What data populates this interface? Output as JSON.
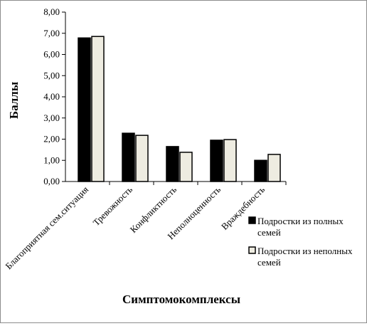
{
  "chart_data": {
    "type": "bar",
    "title": "",
    "xlabel": "Симптомокомплексы",
    "ylabel": "Баллы",
    "ylim": [
      0,
      8
    ],
    "y_ticks": [
      "0,00",
      "1,00",
      "2,00",
      "3,00",
      "4,00",
      "5,00",
      "6,00",
      "7,00",
      "8,00"
    ],
    "grid": false,
    "legend_position": "right",
    "categories": [
      "Благоприятная сем.ситуация",
      "Тревожность",
      "Конфликтность",
      "Неполноценность",
      "Враждебность"
    ],
    "series": [
      {
        "name": "Подростки из полных семей",
        "values": [
          6.78,
          2.28,
          1.65,
          1.95,
          1.0
        ],
        "color": "#000000"
      },
      {
        "name": "Подростки из неполных семей",
        "values": [
          6.85,
          2.18,
          1.38,
          1.98,
          1.28
        ],
        "color": "#eeece1"
      }
    ],
    "legend": [
      {
        "line1": "Подростки из полных",
        "line2": "семей"
      },
      {
        "line1": "Подростки из неполных",
        "line2": "семей"
      }
    ]
  }
}
